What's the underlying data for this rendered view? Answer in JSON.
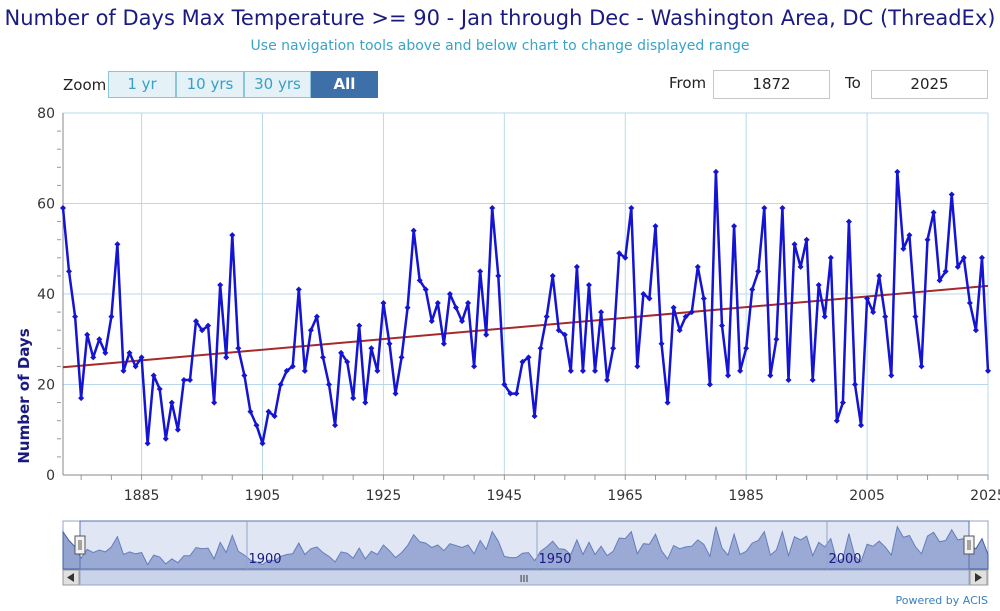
{
  "header": {
    "title": "Number of Days Max Temperature >= 90 - Jan through Dec - Washington Area, DC (ThreadEx)",
    "subtitle": "Use navigation tools above and below chart to change displayed range"
  },
  "toolbar": {
    "zoom_label": "Zoom",
    "zoom_buttons": [
      {
        "label": "1 yr",
        "active": false
      },
      {
        "label": "10 yrs",
        "active": false
      },
      {
        "label": "30 yrs",
        "active": false
      },
      {
        "label": "All",
        "active": true
      }
    ],
    "from_label": "From",
    "from_value": "1872",
    "to_label": "To",
    "to_value": "2025"
  },
  "chart_data": {
    "type": "line",
    "title": "Number of Days Max Temperature >= 90 - Jan through Dec - Washington Area, DC (ThreadEx)",
    "ylabel": "Number of Days",
    "xlabel": "",
    "xlim": [
      1872,
      2025
    ],
    "ylim": [
      0,
      80
    ],
    "x_ticks": [
      1885,
      1905,
      1925,
      1945,
      1965,
      1985,
      2005,
      2025
    ],
    "y_ticks": [
      0,
      20,
      40,
      60,
      80
    ],
    "grid": true,
    "series_color": "#1414d2",
    "trend_color": "#a52a2a",
    "series": [
      {
        "x_start": 1872,
        "values": [
          59,
          45,
          35,
          17,
          31,
          26,
          30,
          27,
          35,
          51,
          23,
          27,
          24,
          26,
          7,
          22,
          19,
          8,
          16,
          10,
          21,
          21,
          34,
          32,
          33,
          16,
          42,
          26,
          53,
          28,
          22,
          14,
          11,
          7,
          14,
          13,
          20,
          23,
          24,
          41,
          23,
          32,
          35,
          26,
          20,
          11,
          27,
          25,
          17,
          33,
          16,
          28,
          23,
          38,
          29,
          18,
          26,
          37,
          54,
          43,
          41,
          34,
          38,
          29,
          40,
          37,
          34,
          38,
          24,
          45,
          31,
          59,
          44,
          20,
          18,
          18,
          25,
          26,
          13,
          28,
          35,
          44,
          32,
          31,
          23,
          46,
          23,
          42,
          23,
          36,
          21,
          28,
          49,
          48,
          59,
          24,
          40,
          39,
          55,
          29,
          16,
          37,
          32,
          35,
          36,
          46,
          39,
          20,
          67,
          33,
          22,
          55,
          23,
          28,
          41,
          45,
          59,
          22,
          30,
          59,
          21,
          51,
          46,
          52,
          21,
          42,
          35,
          48,
          12,
          16,
          56,
          20,
          11,
          39,
          36,
          44,
          35,
          22,
          67,
          50,
          53,
          35,
          24,
          52,
          58,
          43,
          45,
          62,
          46,
          48,
          38,
          32,
          48,
          23
        ]
      }
    ],
    "trend": {
      "start": [
        1872,
        23.8
      ],
      "end": [
        2025,
        41.8
      ]
    },
    "navigator": {
      "x_labels": [
        1900,
        1950,
        2000
      ],
      "handle_label": "III"
    }
  },
  "footer": {
    "credit": "Powered by ACIS"
  }
}
